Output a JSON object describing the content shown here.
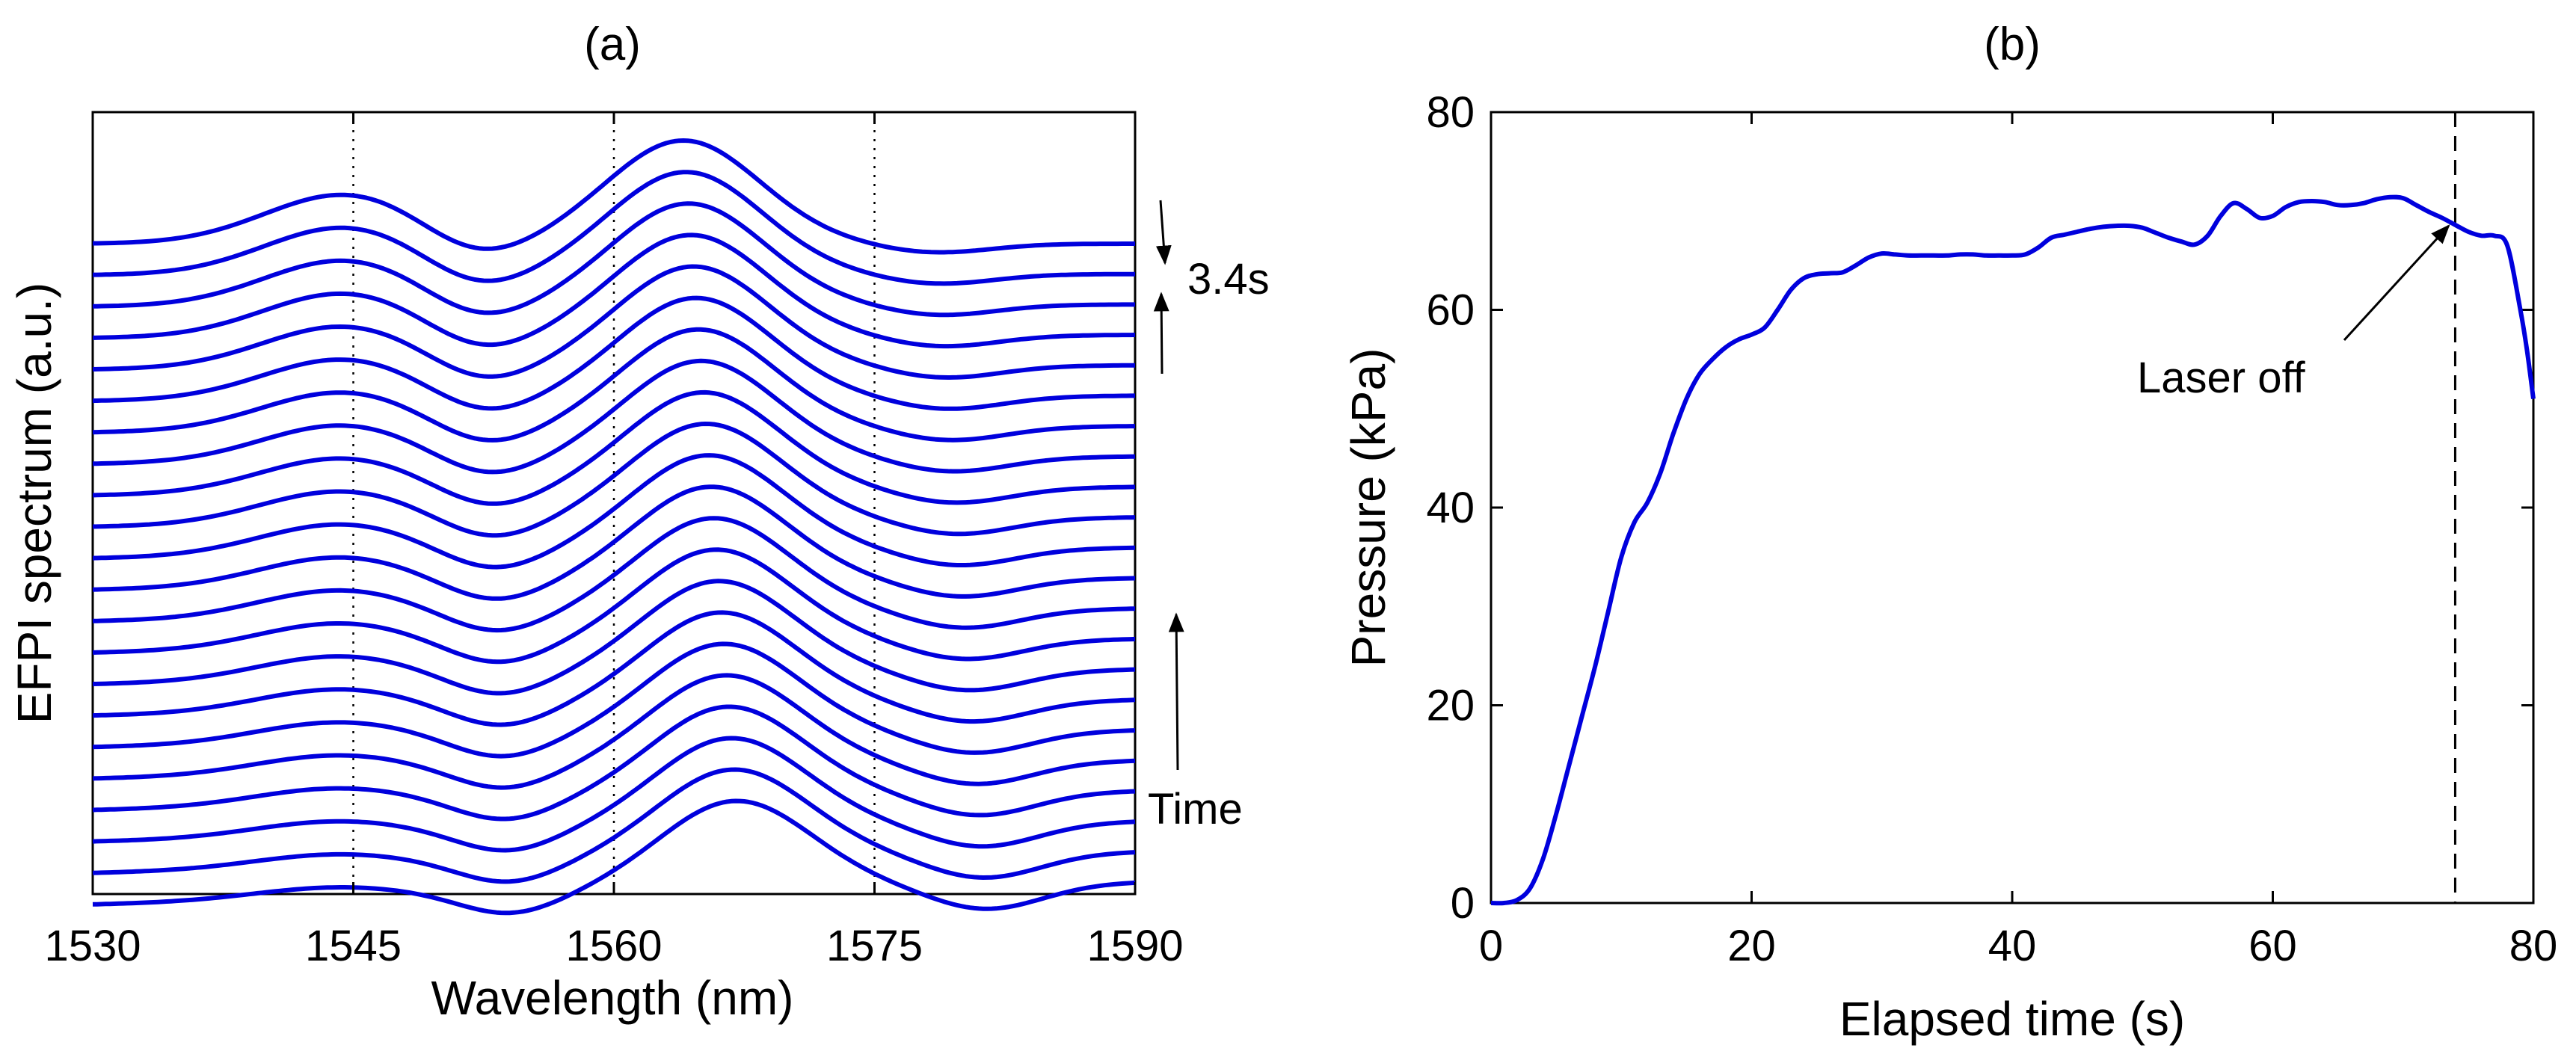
{
  "chart_data": [
    {
      "type": "line",
      "panel_label": "(a)",
      "xlabel": "Wavelength (nm)",
      "ylabel": "EFPI spectrum (a.u.)",
      "xlim": [
        1530,
        1590
      ],
      "xticks": [
        "1530",
        "1545",
        "1560",
        "1575",
        "1590"
      ],
      "y_ticks_shown": false,
      "reference_lines_x": [
        1545,
        1560,
        1575
      ],
      "reference_line_style": "dotted",
      "series_count": 22,
      "series_color": "#0000dd",
      "series_description": "22 vertically offset interference spectra, one every 3.4 s; bottom trace is earliest, valley near 1553 nm and peak near 1565 nm, shifting slightly with time",
      "peak_wavelength_nm": {
        "earliest": 1567,
        "latest": 1564
      },
      "valley_wavelength_nm": {
        "earliest": 1554,
        "latest": 1552
      },
      "annotations": [
        {
          "text": "3.4s",
          "meaning": "spacing between adjacent traces"
        },
        {
          "text": "Time",
          "meaning": "arrow pointing upward, time increases upward"
        }
      ]
    },
    {
      "type": "line",
      "panel_label": "(b)",
      "xlabel": "Elapsed time (s)",
      "ylabel": "Pressure (kPa)",
      "xlim": [
        0,
        80
      ],
      "ylim": [
        0,
        80
      ],
      "xticks": [
        "0",
        "20",
        "40",
        "60",
        "80"
      ],
      "yticks": [
        "0",
        "20",
        "40",
        "60",
        "80"
      ],
      "series_color": "#0000dd",
      "x": [
        0,
        1,
        2,
        3,
        4,
        5,
        6,
        7,
        8,
        9,
        10,
        11,
        12,
        13,
        14,
        15,
        16,
        17,
        18,
        19,
        20,
        21,
        22,
        23,
        24,
        25,
        26,
        27,
        28,
        29,
        30,
        31,
        32,
        33,
        34,
        35,
        36,
        37,
        38,
        39,
        40,
        41,
        42,
        43,
        44,
        45,
        46,
        47,
        48,
        49,
        50,
        51,
        52,
        53,
        54,
        55,
        56,
        57,
        58,
        59,
        60,
        61,
        62,
        63,
        64,
        65,
        66,
        67,
        68,
        69,
        70,
        71,
        72,
        73,
        74,
        75,
        76,
        77,
        78,
        79,
        79.5,
        80
      ],
      "y": [
        0,
        0,
        0.3,
        1.5,
        4.5,
        9,
        14,
        19,
        24,
        29.5,
        35,
        38.5,
        40.5,
        43.5,
        47.5,
        51,
        53.5,
        55,
        56.2,
        57,
        57.5,
        58.2,
        60,
        62,
        63.2,
        63.6,
        63.7,
        63.8,
        64.5,
        65.3,
        65.7,
        65.6,
        65.5,
        65.5,
        65.5,
        65.5,
        65.6,
        65.6,
        65.5,
        65.5,
        65.5,
        65.6,
        66.3,
        67.3,
        67.6,
        67.9,
        68.2,
        68.4,
        68.5,
        68.5,
        68.3,
        67.8,
        67.3,
        66.9,
        66.6,
        67.5,
        69.5,
        70.8,
        70.2,
        69.3,
        69.5,
        70.4,
        70.9,
        71,
        70.9,
        70.6,
        70.6,
        70.8,
        71.2,
        71.4,
        71.3,
        70.6,
        69.9,
        69.3,
        68.6,
        67.9,
        67.5,
        67.5,
        66.5,
        60,
        56,
        51
      ],
      "reference_lines_x": [
        74
      ],
      "reference_line_style": "dashed",
      "annotations": [
        {
          "text": "Laser off",
          "points_to": {
            "x": 73.5,
            "y": 68.5
          }
        }
      ]
    }
  ]
}
